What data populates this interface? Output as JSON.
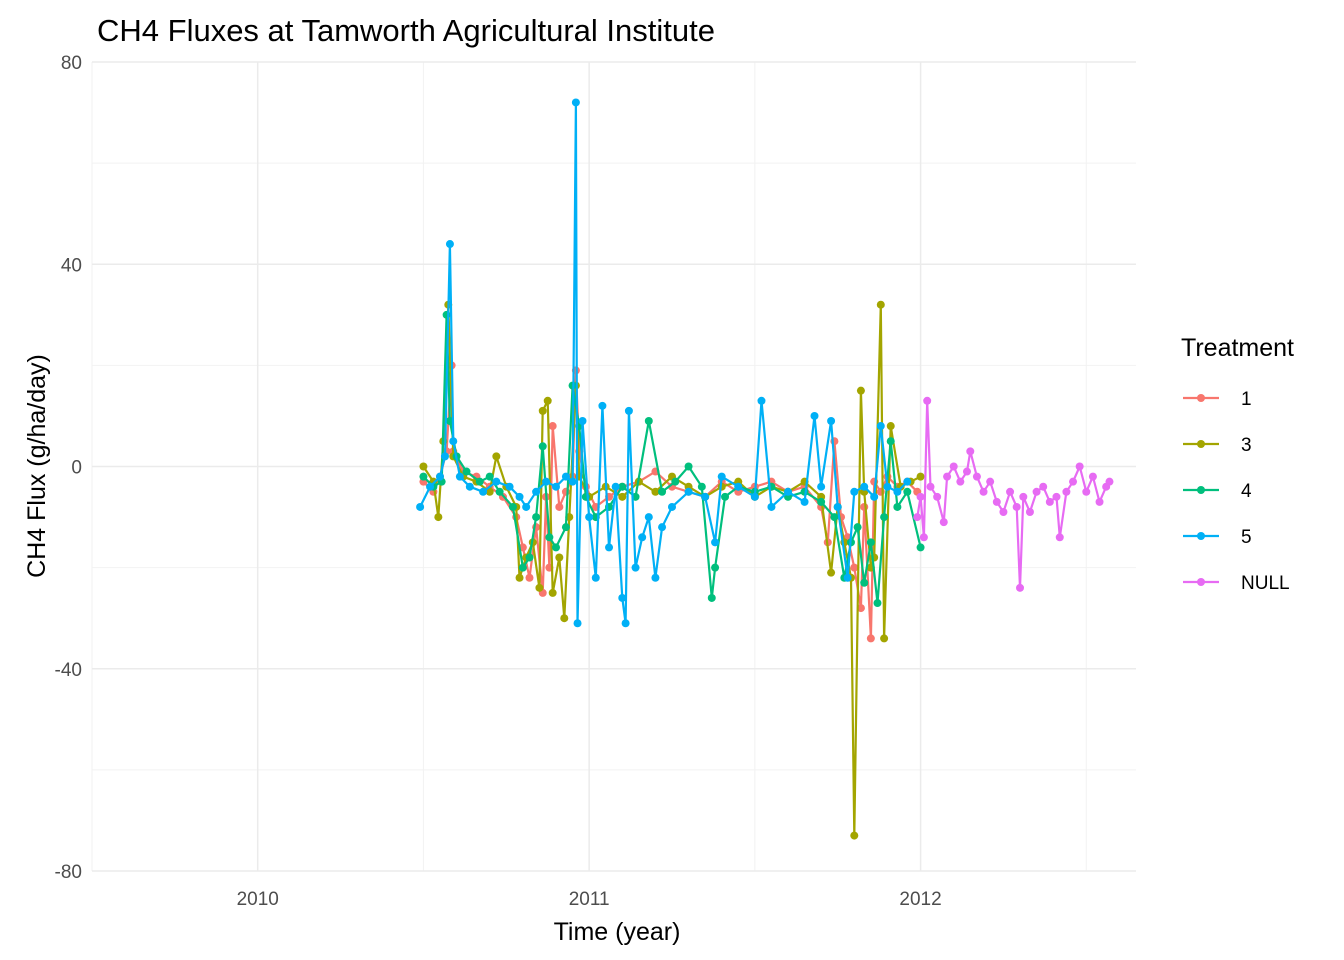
{
  "chart_data": {
    "type": "line",
    "title": "CH4 Fluxes at Tamworth Agricultural Institute",
    "xlabel": "Time (year)",
    "ylabel": "CH4 Flux (g/ha/day)",
    "x_ticks": [
      "2010",
      "2011",
      "2012"
    ],
    "y_ticks": [
      "-80",
      "-40",
      "0",
      "40",
      "80"
    ],
    "xlim": [
      2009.5,
      2012.65
    ],
    "ylim": [
      -80,
      80
    ],
    "grid": true,
    "legend": {
      "title": "Treatment",
      "position": "right"
    },
    "series": [
      {
        "name": "1",
        "color": "#F8766D",
        "points": [
          [
            2010.5,
            -3
          ],
          [
            2010.53,
            -5
          ],
          [
            2010.55,
            -2
          ],
          [
            2010.57,
            3
          ],
          [
            2010.585,
            20
          ],
          [
            2010.59,
            3
          ],
          [
            2010.62,
            -1
          ],
          [
            2010.66,
            -2
          ],
          [
            2010.7,
            -4
          ],
          [
            2010.74,
            -6
          ],
          [
            2010.78,
            -10
          ],
          [
            2010.8,
            -16
          ],
          [
            2010.82,
            -22
          ],
          [
            2010.84,
            -12
          ],
          [
            2010.86,
            -25
          ],
          [
            2010.87,
            -6
          ],
          [
            2010.88,
            -20
          ],
          [
            2010.89,
            8
          ],
          [
            2010.91,
            -8
          ],
          [
            2010.93,
            -5
          ],
          [
            2010.95,
            -2
          ],
          [
            2010.96,
            19
          ],
          [
            2010.97,
            3
          ],
          [
            2010.99,
            -4
          ],
          [
            2011.02,
            -8
          ],
          [
            2011.06,
            -6
          ],
          [
            2011.1,
            -4
          ],
          [
            2011.15,
            -3
          ],
          [
            2011.2,
            -1
          ],
          [
            2011.25,
            -4
          ],
          [
            2011.3,
            -5
          ],
          [
            2011.35,
            -6
          ],
          [
            2011.4,
            -3
          ],
          [
            2011.45,
            -5
          ],
          [
            2011.5,
            -4
          ],
          [
            2011.55,
            -3
          ],
          [
            2011.6,
            -5
          ],
          [
            2011.65,
            -4
          ],
          [
            2011.7,
            -8
          ],
          [
            2011.72,
            -15
          ],
          [
            2011.74,
            5
          ],
          [
            2011.76,
            -10
          ],
          [
            2011.78,
            -14
          ],
          [
            2011.8,
            -20
          ],
          [
            2011.82,
            -28
          ],
          [
            2011.83,
            -8
          ],
          [
            2011.85,
            -34
          ],
          [
            2011.86,
            -3
          ],
          [
            2011.88,
            -5
          ],
          [
            2011.9,
            -2
          ],
          [
            2011.93,
            -4
          ],
          [
            2011.96,
            -3
          ],
          [
            2011.99,
            -5
          ]
        ]
      },
      {
        "name": "3",
        "color": "#A3A500",
        "points": [
          [
            2010.5,
            0
          ],
          [
            2010.53,
            -3
          ],
          [
            2010.545,
            -10
          ],
          [
            2010.56,
            5
          ],
          [
            2010.575,
            32
          ],
          [
            2010.59,
            2
          ],
          [
            2010.62,
            -2
          ],
          [
            2010.66,
            -3
          ],
          [
            2010.7,
            -5
          ],
          [
            2010.72,
            2
          ],
          [
            2010.75,
            -4
          ],
          [
            2010.78,
            -8
          ],
          [
            2010.79,
            -22
          ],
          [
            2010.81,
            -18
          ],
          [
            2010.83,
            -15
          ],
          [
            2010.85,
            -24
          ],
          [
            2010.86,
            11
          ],
          [
            2010.875,
            13
          ],
          [
            2010.89,
            -25
          ],
          [
            2010.91,
            -18
          ],
          [
            2010.925,
            -30
          ],
          [
            2010.94,
            -10
          ],
          [
            2010.96,
            16
          ],
          [
            2010.97,
            -2
          ],
          [
            2011.0,
            -6
          ],
          [
            2011.05,
            -4
          ],
          [
            2011.1,
            -6
          ],
          [
            2011.15,
            -3
          ],
          [
            2011.2,
            -5
          ],
          [
            2011.25,
            -2
          ],
          [
            2011.3,
            -4
          ],
          [
            2011.35,
            -6
          ],
          [
            2011.4,
            -4
          ],
          [
            2011.45,
            -3
          ],
          [
            2011.5,
            -6
          ],
          [
            2011.55,
            -4
          ],
          [
            2011.6,
            -5
          ],
          [
            2011.65,
            -3
          ],
          [
            2011.7,
            -6
          ],
          [
            2011.73,
            -21
          ],
          [
            2011.75,
            -8
          ],
          [
            2011.77,
            -15
          ],
          [
            2011.79,
            -22
          ],
          [
            2011.8,
            -73
          ],
          [
            2011.82,
            15
          ],
          [
            2011.83,
            -5
          ],
          [
            2011.85,
            -20
          ],
          [
            2011.86,
            -18
          ],
          [
            2011.88,
            32
          ],
          [
            2011.89,
            -34
          ],
          [
            2011.91,
            8
          ],
          [
            2011.94,
            -4
          ],
          [
            2011.97,
            -3
          ],
          [
            2012.0,
            -2
          ]
        ]
      },
      {
        "name": "4",
        "color": "#00BF7D",
        "points": [
          [
            2010.5,
            -2
          ],
          [
            2010.53,
            -4
          ],
          [
            2010.555,
            -3
          ],
          [
            2010.57,
            30
          ],
          [
            2010.58,
            9
          ],
          [
            2010.6,
            2
          ],
          [
            2010.63,
            -1
          ],
          [
            2010.67,
            -3
          ],
          [
            2010.7,
            -2
          ],
          [
            2010.73,
            -5
          ],
          [
            2010.77,
            -8
          ],
          [
            2010.8,
            -20
          ],
          [
            2010.82,
            -18
          ],
          [
            2010.84,
            -10
          ],
          [
            2010.86,
            4
          ],
          [
            2010.88,
            -14
          ],
          [
            2010.9,
            -16
          ],
          [
            2010.93,
            -12
          ],
          [
            2010.95,
            16
          ],
          [
            2010.97,
            8
          ],
          [
            2010.99,
            -6
          ],
          [
            2011.02,
            -10
          ],
          [
            2011.06,
            -8
          ],
          [
            2011.1,
            -4
          ],
          [
            2011.14,
            -6
          ],
          [
            2011.18,
            9
          ],
          [
            2011.22,
            -5
          ],
          [
            2011.26,
            -3
          ],
          [
            2011.3,
            0
          ],
          [
            2011.34,
            -4
          ],
          [
            2011.37,
            -26
          ],
          [
            2011.38,
            -20
          ],
          [
            2011.41,
            -6
          ],
          [
            2011.45,
            -4
          ],
          [
            2011.5,
            -5
          ],
          [
            2011.55,
            -4
          ],
          [
            2011.6,
            -6
          ],
          [
            2011.65,
            -5
          ],
          [
            2011.7,
            -7
          ],
          [
            2011.74,
            -10
          ],
          [
            2011.77,
            -22
          ],
          [
            2011.79,
            -15
          ],
          [
            2011.81,
            -12
          ],
          [
            2011.83,
            -23
          ],
          [
            2011.85,
            -15
          ],
          [
            2011.87,
            -27
          ],
          [
            2011.89,
            -10
          ],
          [
            2011.91,
            5
          ],
          [
            2011.93,
            -8
          ],
          [
            2011.96,
            -5
          ],
          [
            2012.0,
            -16
          ]
        ]
      },
      {
        "name": "5",
        "color": "#00B0F6",
        "points": [
          [
            2010.49,
            -8
          ],
          [
            2010.52,
            -4
          ],
          [
            2010.55,
            -2
          ],
          [
            2010.565,
            2
          ],
          [
            2010.58,
            44
          ],
          [
            2010.59,
            5
          ],
          [
            2010.61,
            -2
          ],
          [
            2010.64,
            -4
          ],
          [
            2010.68,
            -5
          ],
          [
            2010.72,
            -3
          ],
          [
            2010.76,
            -4
          ],
          [
            2010.79,
            -6
          ],
          [
            2010.81,
            -8
          ],
          [
            2010.84,
            -5
          ],
          [
            2010.87,
            -3
          ],
          [
            2010.9,
            -4
          ],
          [
            2010.93,
            -2
          ],
          [
            2010.95,
            -3
          ],
          [
            2010.96,
            72
          ],
          [
            2010.965,
            -31
          ],
          [
            2010.98,
            9
          ],
          [
            2011.0,
            -10
          ],
          [
            2011.02,
            -22
          ],
          [
            2011.04,
            12
          ],
          [
            2011.06,
            -16
          ],
          [
            2011.08,
            -4
          ],
          [
            2011.1,
            -26
          ],
          [
            2011.11,
            -31
          ],
          [
            2011.12,
            11
          ],
          [
            2011.14,
            -20
          ],
          [
            2011.16,
            -14
          ],
          [
            2011.18,
            -10
          ],
          [
            2011.2,
            -22
          ],
          [
            2011.22,
            -12
          ],
          [
            2011.25,
            -8
          ],
          [
            2011.3,
            -5
          ],
          [
            2011.35,
            -6
          ],
          [
            2011.38,
            -15
          ],
          [
            2011.4,
            -2
          ],
          [
            2011.45,
            -4
          ],
          [
            2011.5,
            -6
          ],
          [
            2011.52,
            13
          ],
          [
            2011.55,
            -8
          ],
          [
            2011.6,
            -5
          ],
          [
            2011.65,
            -7
          ],
          [
            2011.68,
            10
          ],
          [
            2011.7,
            -4
          ],
          [
            2011.73,
            9
          ],
          [
            2011.75,
            -8
          ],
          [
            2011.78,
            -22
          ],
          [
            2011.8,
            -5
          ],
          [
            2011.83,
            -4
          ],
          [
            2011.86,
            -6
          ],
          [
            2011.88,
            8
          ],
          [
            2011.9,
            -4
          ],
          [
            2011.93,
            -5
          ],
          [
            2011.96,
            -3
          ]
        ]
      },
      {
        "name": "NULL",
        "color": "#E76BF3",
        "points": [
          [
            2011.99,
            -10
          ],
          [
            2012.0,
            -6
          ],
          [
            2012.01,
            -14
          ],
          [
            2012.02,
            13
          ],
          [
            2012.03,
            -4
          ],
          [
            2012.05,
            -6
          ],
          [
            2012.07,
            -11
          ],
          [
            2012.08,
            -2
          ],
          [
            2012.1,
            0
          ],
          [
            2012.12,
            -3
          ],
          [
            2012.14,
            -1
          ],
          [
            2012.15,
            3
          ],
          [
            2012.17,
            -2
          ],
          [
            2012.19,
            -5
          ],
          [
            2012.21,
            -3
          ],
          [
            2012.23,
            -7
          ],
          [
            2012.25,
            -9
          ],
          [
            2012.27,
            -5
          ],
          [
            2012.29,
            -8
          ],
          [
            2012.3,
            -24
          ],
          [
            2012.31,
            -6
          ],
          [
            2012.33,
            -9
          ],
          [
            2012.35,
            -5
          ],
          [
            2012.37,
            -4
          ],
          [
            2012.39,
            -7
          ],
          [
            2012.41,
            -6
          ],
          [
            2012.42,
            -14
          ],
          [
            2012.44,
            -5
          ],
          [
            2012.46,
            -3
          ],
          [
            2012.48,
            0
          ],
          [
            2012.5,
            -5
          ],
          [
            2012.52,
            -2
          ],
          [
            2012.54,
            -7
          ],
          [
            2012.56,
            -4
          ],
          [
            2012.57,
            -3
          ]
        ]
      }
    ]
  }
}
